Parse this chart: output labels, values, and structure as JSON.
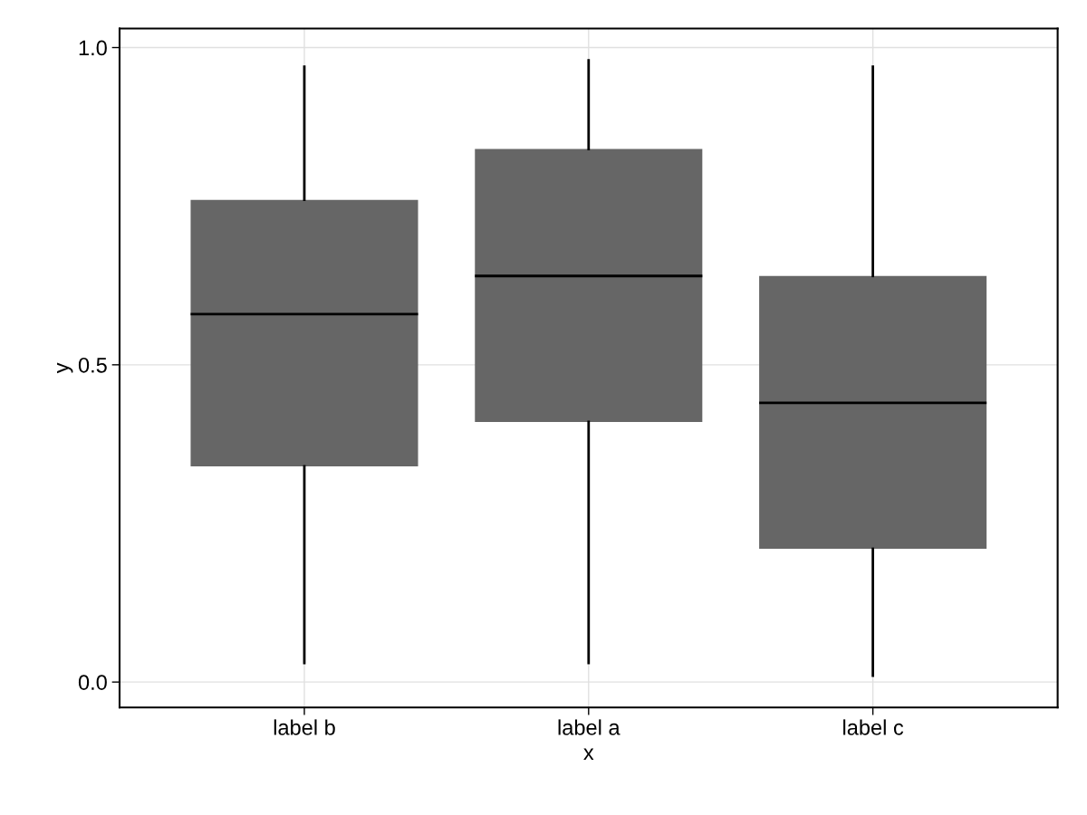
{
  "chart_data": {
    "type": "box",
    "xlabel": "x",
    "ylabel": "y",
    "categories": [
      "label b",
      "label a",
      "label c"
    ],
    "boxes": [
      {
        "low": 0.03,
        "q1": 0.34,
        "median": 0.58,
        "q3": 0.76,
        "high": 0.97
      },
      {
        "low": 0.03,
        "q1": 0.41,
        "median": 0.64,
        "q3": 0.84,
        "high": 0.98
      },
      {
        "low": 0.01,
        "q1": 0.21,
        "median": 0.44,
        "q3": 0.64,
        "high": 0.97
      }
    ],
    "color": "#666666",
    "ylim": [
      -0.04,
      1.03
    ],
    "yticks": [
      {
        "value": 0,
        "label": "0.0"
      },
      0.5,
      {
        "value": 1,
        "label": "1.0"
      }
    ],
    "grid": true
  }
}
